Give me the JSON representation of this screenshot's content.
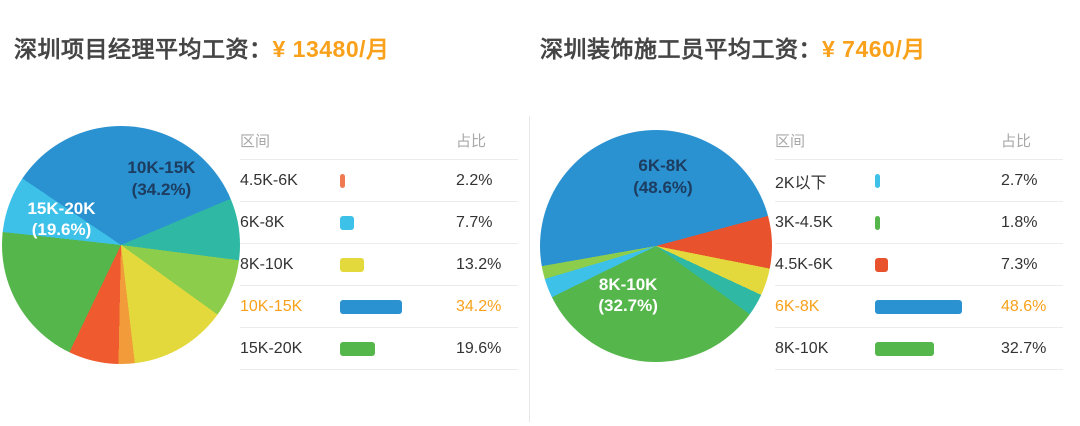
{
  "accent_color": "#f9a11b",
  "chart_data": [
    {
      "type": "pie",
      "title": "深圳项目经理平均工资：¥ 13480/月",
      "categories": [
        "4.5K-6K",
        "6K-8K",
        "8K-10K",
        "10K-15K",
        "15K-20K"
      ],
      "values": [
        2.2,
        7.7,
        13.2,
        34.2,
        19.6
      ],
      "highlighted": "10K-15K",
      "legend_position": "right",
      "callout_labels": [
        "10K-15K (34.2%)",
        "15K-20K (19.6%)"
      ]
    },
    {
      "type": "pie",
      "title": "深圳装饰施工员平均工资：¥ 7460/月",
      "categories": [
        "2K以下",
        "3K-4.5K",
        "4.5K-6K",
        "6K-8K",
        "8K-10K"
      ],
      "values": [
        2.7,
        1.8,
        7.3,
        48.6,
        32.7
      ],
      "highlighted": "6K-8K",
      "legend_position": "right",
      "callout_labels": [
        "6K-8K (48.6%)",
        "8K-10K (32.7%)"
      ]
    }
  ],
  "panels": [
    {
      "title_prefix": "深圳项目经理平均工资：",
      "title_value": "¥ 13480/月",
      "legend": {
        "col_range": "区间",
        "col_share": "占比",
        "rows": [
          {
            "label": "4.5K-6K",
            "pct": 2.2,
            "pct_text": "2.2%",
            "color": "#ef7a52",
            "highlight": false
          },
          {
            "label": "6K-8K",
            "pct": 7.7,
            "pct_text": "7.7%",
            "color": "#3ec1e9",
            "highlight": false
          },
          {
            "label": "8K-10K",
            "pct": 13.2,
            "pct_text": "13.2%",
            "color": "#e3d93c",
            "highlight": false
          },
          {
            "label": "10K-15K",
            "pct": 34.2,
            "pct_text": "34.2%",
            "color": "#2b92d1",
            "highlight": true
          },
          {
            "label": "15K-20K",
            "pct": 19.6,
            "pct_text": "19.6%",
            "color": "#55b64b",
            "highlight": false
          }
        ]
      },
      "pie": {
        "start_angle": -56,
        "segments": [
          {
            "color": "#2b92d1",
            "pct": 34.2
          },
          {
            "color": "#2fb9a4",
            "pct": 8.4
          },
          {
            "color": "#8ccd4b",
            "pct": 7.9
          },
          {
            "color": "#e3d93c",
            "pct": 13.2
          },
          {
            "color": "#f29b3b",
            "pct": 2.2
          },
          {
            "color": "#ef5a2e",
            "pct": 6.8
          },
          {
            "color": "#55b64b",
            "pct": 19.6
          },
          {
            "color": "#3ec1e9",
            "pct": 7.7
          }
        ],
        "labels": [
          {
            "line1": "10K-15K",
            "line2": "(34.2%)",
            "x": "67%",
            "y": "22%",
            "color": "#1c3c60"
          },
          {
            "line1": "15K-20K",
            "line2": "(19.6%)",
            "x": "25%",
            "y": "39%",
            "color": "#ffffff"
          }
        ]
      }
    },
    {
      "title_prefix": "深圳装饰施工员平均工资：",
      "title_value": "¥ 7460/月",
      "legend": {
        "col_range": "区间",
        "col_share": "占比",
        "rows": [
          {
            "label": "2K以下",
            "pct": 2.7,
            "pct_text": "2.7%",
            "color": "#3ec1e9",
            "highlight": false
          },
          {
            "label": "3K-4.5K",
            "pct": 1.8,
            "pct_text": "1.8%",
            "color": "#55b64b",
            "highlight": false
          },
          {
            "label": "4.5K-6K",
            "pct": 7.3,
            "pct_text": "7.3%",
            "color": "#e8532e",
            "highlight": false
          },
          {
            "label": "6K-8K",
            "pct": 48.6,
            "pct_text": "48.6%",
            "color": "#2b92d1",
            "highlight": true
          },
          {
            "label": "8K-10K",
            "pct": 32.7,
            "pct_text": "32.7%",
            "color": "#55b64b",
            "highlight": false
          }
        ]
      },
      "pie": {
        "start_angle": -100,
        "segments": [
          {
            "color": "#2b92d1",
            "pct": 48.6
          },
          {
            "color": "#e8532e",
            "pct": 7.3
          },
          {
            "color": "#e3d93c",
            "pct": 3.8
          },
          {
            "color": "#2fb9a4",
            "pct": 3.1
          },
          {
            "color": "#55b64b",
            "pct": 32.7
          },
          {
            "color": "#3ec1e9",
            "pct": 2.7
          },
          {
            "color": "#8ccd4b",
            "pct": 1.8
          }
        ],
        "labels": [
          {
            "line1": "6K-8K",
            "line2": "(48.6%)",
            "x": "53%",
            "y": "20%",
            "color": "#1c3c60"
          },
          {
            "line1": "8K-10K",
            "line2": "(32.7%)",
            "x": "38%",
            "y": "71%",
            "color": "#ffffff"
          }
        ]
      }
    }
  ]
}
